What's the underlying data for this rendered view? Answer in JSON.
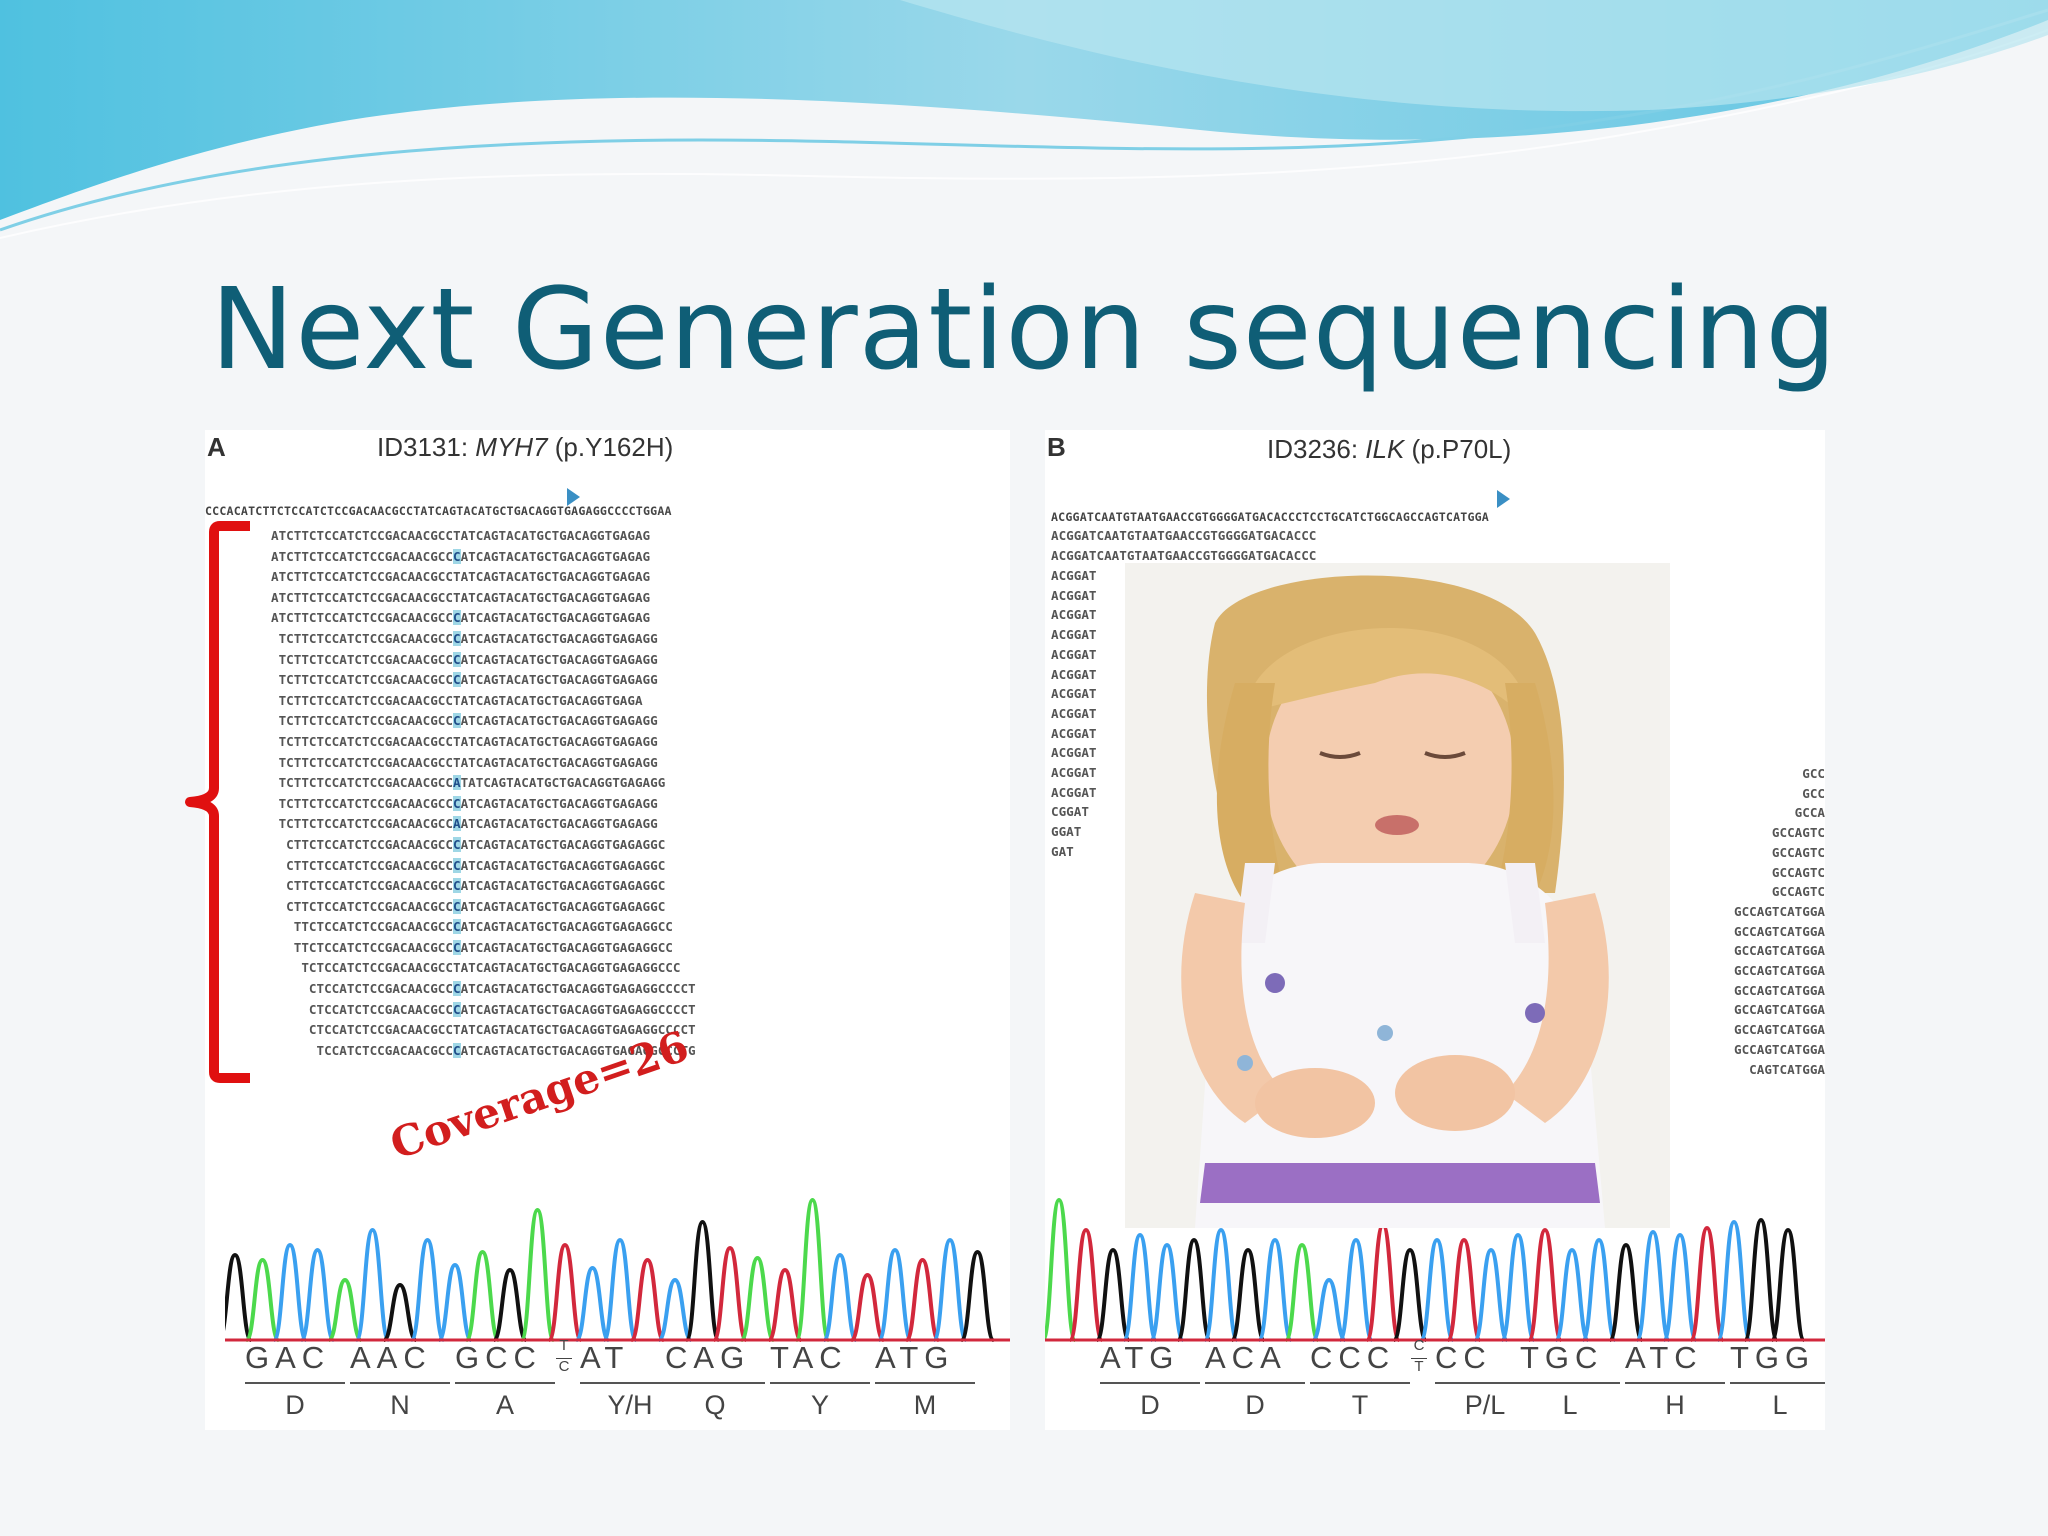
{
  "title": "Next Generation sequencing",
  "annotation": "Coverage=26",
  "panel_a": {
    "label": "A",
    "id": "ID3131: ",
    "gene": "MYH7",
    "variant": " (p.Y162H)",
    "reference": "CCCACATCTTCTCCATCTCCGACAACGCCTATCAGTACATGCTGACAGGTGAGAGGCCCCTGGAA",
    "reads": [
      {
        "pre": "ATCTTCTCCATCTCCGACAACGCC",
        "b": "T",
        "post": "ATCAGTACATGCTGACAGGTGAGAG",
        "h": false
      },
      {
        "pre": "ATCTTCTCCATCTCCGACAACGCC",
        "b": "C",
        "post": "ATCAGTACATGCTGACAGGTGAGAG",
        "h": true
      },
      {
        "pre": "ATCTTCTCCATCTCCGACAACGCC",
        "b": "T",
        "post": "ATCAGTACATGCTGACAGGTGAGAG",
        "h": false
      },
      {
        "pre": "ATCTTCTCCATCTCCGACAACGCC",
        "b": "T",
        "post": "ATCAGTACATGCTGACAGGTGAGAG",
        "h": false
      },
      {
        "pre": "ATCTTCTCCATCTCCGACAACGCC",
        "b": "C",
        "post": "ATCAGTACATGCTGACAGGTGAGAG",
        "h": true
      },
      {
        "pre": " TCTTCTCCATCTCCGACAACGCC",
        "b": "C",
        "post": "ATCAGTACATGCTGACAGGTGAGAGG",
        "h": true
      },
      {
        "pre": " TCTTCTCCATCTCCGACAACGCC",
        "b": "C",
        "post": "ATCAGTACATGCTGACAGGTGAGAGG",
        "h": true
      },
      {
        "pre": " TCTTCTCCATCTCCGACAACGCC",
        "b": "C",
        "post": "ATCAGTACATGCTGACAGGTGAGAGG",
        "h": true
      },
      {
        "pre": " TCTTCTCCATCTCCGACAACGCC",
        "b": "T",
        "post": "ATCAGTACATGCTGACAGGTGAGA",
        "h": false
      },
      {
        "pre": " TCTTCTCCATCTCCGACAACGCC",
        "b": "C",
        "post": "ATCAGTACATGCTGACAGGTGAGAGG",
        "h": true
      },
      {
        "pre": " TCTTCTCCATCTCCGACAACGCC",
        "b": "T",
        "post": "ATCAGTACATGCTGACAGGTGAGAGG",
        "h": false
      },
      {
        "pre": " TCTTCTCCATCTCCGACAACGCC",
        "b": "T",
        "post": "ATCAGTACATGCTGACAGGTGAGAGG",
        "h": false
      },
      {
        "pre": " TCTTCTCCATCTCCGACAACGCC",
        "b": "A",
        "post": "TATCAGTACATGCTGACAGGTGAGAGG",
        "h": true
      },
      {
        "pre": " TCTTCTCCATCTCCGACAACGCC",
        "b": "C",
        "post": "ATCAGTACATGCTGACAGGTGAGAGG",
        "h": true
      },
      {
        "pre": " TCTTCTCCATCTCCGACAACGCC",
        "b": "A",
        "post": "ATCAGTACATGCTGACAGGTGAGAGG",
        "h": true
      },
      {
        "pre": "  CTTCTCCATCTCCGACAACGCC",
        "b": "C",
        "post": "ATCAGTACATGCTGACAGGTGAGAGGC",
        "h": true
      },
      {
        "pre": "  CTTCTCCATCTCCGACAACGCC",
        "b": "C",
        "post": "ATCAGTACATGCTGACAGGTGAGAGGC",
        "h": true
      },
      {
        "pre": "  CTTCTCCATCTCCGACAACGCC",
        "b": "C",
        "post": "ATCAGTACATGCTGACAGGTGAGAGGC",
        "h": true
      },
      {
        "pre": "  CTTCTCCATCTCCGACAACGCC",
        "b": "C",
        "post": "ATCAGTACATGCTGACAGGTGAGAGGC",
        "h": true
      },
      {
        "pre": "   TTCTCCATCTCCGACAACGCC",
        "b": "C",
        "post": "ATCAGTACATGCTGACAGGTGAGAGGCC",
        "h": true
      },
      {
        "pre": "   TTCTCCATCTCCGACAACGCC",
        "b": "C",
        "post": "ATCAGTACATGCTGACAGGTGAGAGGCC",
        "h": true
      },
      {
        "pre": "    TCTCCATCTCCGACAACGCC",
        "b": "T",
        "post": "ATCAGTACATGCTGACAGGTGAGAGGCCC",
        "h": false
      },
      {
        "pre": "     CTCCATCTCCGACAACGCC",
        "b": "C",
        "post": "ATCAGTACATGCTGACAGGTGAGAGGCCCCT",
        "h": true
      },
      {
        "pre": "     CTCCATCTCCGACAACGCC",
        "b": "C",
        "post": "ATCAGTACATGCTGACAGGTGAGAGGCCCCT",
        "h": true
      },
      {
        "pre": "     CTCCATCTCCGACAACGCC",
        "b": "T",
        "post": "ATCAGTACATGCTGACAGGTGAGAGGCCCCT",
        "h": false
      },
      {
        "pre": "      TCCATCTCCGACAACGCC",
        "b": "C",
        "post": "ATCAGTACATGCTGACAGGTGAGAGGCCCTG",
        "h": true
      }
    ],
    "codons": [
      "GAC",
      "AAC",
      "GCC",
      "AT",
      "CAG",
      "TAC",
      "ATG"
    ],
    "het_top": "T",
    "het_bottom": "C",
    "amino_acids": [
      "D",
      "N",
      "A",
      "Y/H",
      "Q",
      "Y",
      "M"
    ]
  },
  "panel_b": {
    "label": "B",
    "id": "ID3236: ",
    "gene": "ILK",
    "variant": " (p.P70L)",
    "reference": "ACGGATCAATGTAATGAACCGTGGGGATGACACCCTCCTGCATCTGGCAGCCAGTCATGGA",
    "reads_top": [
      "ACGGATCAATGTAATGAACCGTGGGGATGACACCC",
      "ACGGATCAATGTAATGAACCGTGGGGATGACACCC"
    ],
    "reads_left": [
      "ACGGAT",
      "ACGGAT",
      "ACGGAT",
      "ACGGAT",
      "ACGGAT",
      "ACGGAT",
      "ACGGAT",
      "ACGGAT",
      "ACGGAT",
      "ACGGAT",
      "ACGGAT",
      "ACGGAT",
      "CGGAT",
      "GGAT",
      "GAT"
    ],
    "reads_right": [
      "GCC",
      "GCC",
      "GCCA",
      "GCCAGTC",
      "GCCAGTC",
      "GCCAGTC",
      "GCCAGTC",
      "GCCAGTCATGGA",
      "GCCAGTCATGGA",
      "GCCAGTCATGGA",
      "GCCAGTCATGGA",
      "GCCAGTCATGGA",
      "GCCAGTCATGGA",
      "GCCAGTCATGGA",
      "GCCAGTCATGGA",
      "CAGTCATGGA"
    ],
    "codons": [
      "ATG",
      "ACA",
      "CCC",
      "CC",
      "TGC",
      "ATC",
      "TGG"
    ],
    "het_top": "C",
    "het_bottom": "T",
    "amino_acids": [
      "D",
      "D",
      "T",
      "P/L",
      "L",
      "H",
      "L"
    ]
  },
  "colors": {
    "title": "#0f5e76",
    "annotation": "#d21e1e",
    "brace": "#e01010",
    "highlight": "#9fd7e6",
    "trace_black": "#111111",
    "trace_green": "#4cd94c",
    "trace_blue": "#3aa0f0",
    "trace_red": "#d2283c"
  }
}
